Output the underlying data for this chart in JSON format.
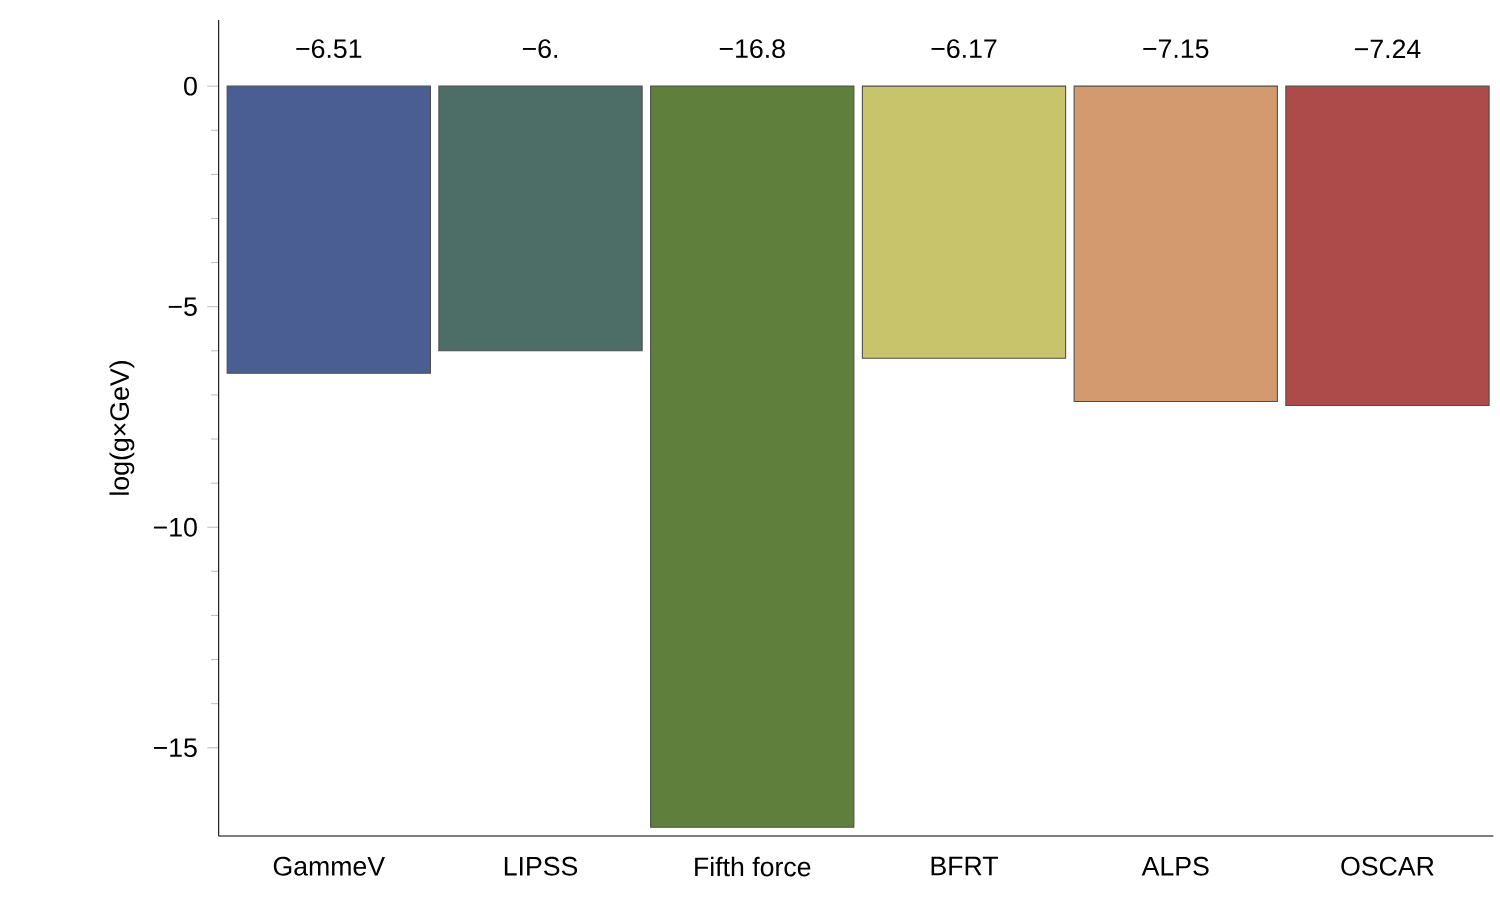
{
  "chart_data": {
    "type": "bar",
    "ylabel": "log(g×GeV)",
    "categories": [
      "GammeV",
      "LIPSS",
      "Fifth force",
      "BFRT",
      "ALPS",
      "OSCAR"
    ],
    "values": [
      -6.51,
      -6.0,
      -16.8,
      -6.17,
      -7.15,
      -7.24
    ],
    "value_labels": [
      "−6.51",
      "−6.",
      "−16.8",
      "−6.17",
      "−7.15",
      "−7.24"
    ],
    "colors": [
      "#4a5e94",
      "#4c6e66",
      "#5f7f3c",
      "#c8c46c",
      "#d39a70",
      "#ad4a4a"
    ],
    "ylim": [
      -17,
      1.5
    ],
    "yticks": [
      0,
      {
        "value": -5,
        "label": "−5"
      },
      {
        "value": -10,
        "label": "−10"
      },
      {
        "value": -15,
        "label": "−15"
      }
    ],
    "grid": false
  }
}
